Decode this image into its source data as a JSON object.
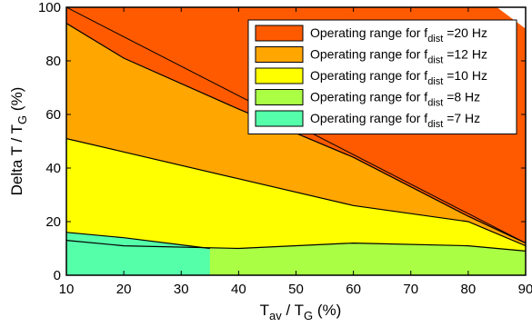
{
  "chart_data": {
    "type": "area",
    "xlabel": {
      "main": "T",
      "sub1": "av",
      "mid": " / T",
      "sub2": "G",
      "unit": " (%)"
    },
    "ylabel": {
      "main": "Delta T / T",
      "sub": "G",
      "unit": " (%)"
    },
    "xlim": [
      10,
      90
    ],
    "ylim": [
      0,
      100
    ],
    "xticks": [
      "10",
      "20",
      "30",
      "40",
      "50",
      "60",
      "70",
      "80",
      "90"
    ],
    "yticks": [
      "0",
      "20",
      "40",
      "60",
      "80",
      "100"
    ],
    "grid": false,
    "legend_position": "top-right",
    "series": [
      {
        "name": "Operating range for f_dist =20 Hz",
        "label_main": "Operating range for f",
        "label_sub": "dist",
        "label_end": " =20 Hz",
        "color": "#ff5a00",
        "x": [
          10,
          90,
          90
        ],
        "y": [
          100,
          100,
          12
        ]
      },
      {
        "name": "Operating range for f_dist =12 Hz",
        "label_main": "Operating range for f",
        "label_sub": "dist",
        "label_end": " =12 Hz",
        "color": "#ffa600",
        "x": [
          10,
          20,
          40,
          60,
          80,
          90
        ],
        "y": [
          94,
          81,
          62,
          44,
          22,
          12
        ]
      },
      {
        "name": "Operating range for f_dist =10 Hz",
        "label_main": "Operating range for f",
        "label_sub": "dist",
        "label_end": " =10 Hz",
        "color": "#ffff00",
        "x": [
          10,
          20,
          40,
          60,
          80,
          90
        ],
        "y": [
          51,
          46,
          36,
          26,
          20,
          11
        ]
      },
      {
        "name": "Operating range for f_dist =8 Hz",
        "label_main": "Operating range for f",
        "label_sub": "dist",
        "label_end": " =8 Hz",
        "color": "#aaff44",
        "x": [
          10,
          20,
          40,
          60,
          80,
          90
        ],
        "y": [
          13,
          11,
          10,
          12,
          11,
          9
        ]
      },
      {
        "name": "Operating range for f_dist =7 Hz",
        "label_main": "Operating range for f",
        "label_sub": "dist",
        "label_end": " =7 Hz",
        "color": "#55ffaa",
        "x": [
          10,
          20,
          35
        ],
        "y": [
          16,
          14,
          10
        ]
      }
    ]
  }
}
